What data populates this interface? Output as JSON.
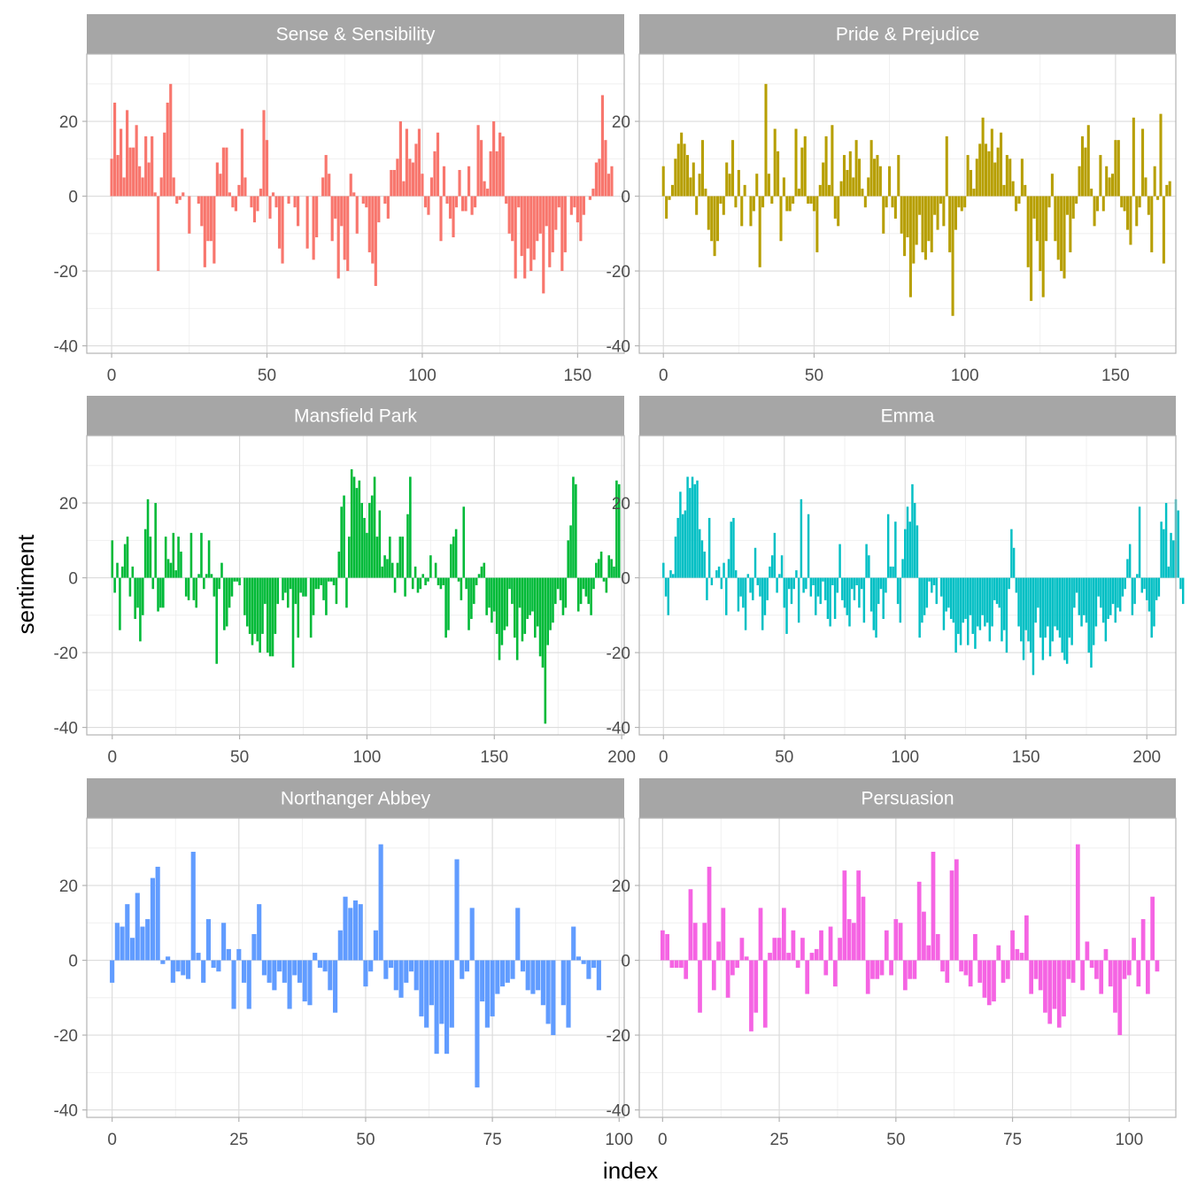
{
  "chart_data": {
    "type": "bar",
    "layout": "facet-grid-2-columns",
    "xlabel": "index",
    "ylabel": "sentiment",
    "ylim": [
      -42,
      38
    ],
    "yticks": [
      -40,
      -20,
      0,
      20
    ],
    "y_minor_ticks": [
      -30,
      -10,
      10,
      30
    ],
    "panels": [
      {
        "title": "Sense & Sensibility",
        "color": "#F8766D",
        "xlim": [
          -8,
          165
        ],
        "xticks": [
          0,
          50,
          100,
          150
        ],
        "x_minor_ticks": [
          25,
          75,
          125
        ],
        "values": [
          10,
          25,
          11,
          18,
          5,
          23,
          13,
          13,
          19,
          8,
          5,
          16,
          9,
          16,
          1,
          -20,
          5,
          17,
          25,
          30,
          5,
          -2,
          -1,
          1,
          0,
          -10,
          0,
          0,
          -2,
          -8,
          -19,
          -12,
          -12,
          -18,
          9,
          6,
          13,
          13,
          1,
          -3,
          -4,
          3,
          18,
          5,
          0,
          -3,
          -7,
          -4,
          2,
          23,
          15,
          -6,
          1,
          -3,
          -14,
          -18,
          0,
          -2,
          0,
          -3,
          -8,
          0,
          0,
          -14,
          0,
          -17,
          -11,
          0,
          5,
          11,
          6,
          -12,
          -6,
          -22,
          -8,
          -17,
          -20,
          6,
          1,
          -10,
          0,
          -2,
          -3,
          -15,
          -18,
          -24,
          -7,
          0,
          -2,
          -6,
          7,
          7,
          10,
          20,
          4,
          18,
          10,
          9,
          14,
          18,
          6,
          -3,
          -5,
          5,
          12,
          17,
          -12,
          8,
          -2,
          -6,
          -11,
          -3,
          7,
          -4,
          -4,
          8,
          -5,
          -3,
          19,
          15,
          4,
          2,
          12,
          20,
          12,
          17,
          16,
          -2,
          -10,
          -12,
          -22,
          -3,
          -16,
          -22,
          -14,
          -20,
          -17,
          -12,
          -10,
          -26,
          -8,
          -19,
          -15,
          -9,
          -3,
          -20,
          -15,
          0,
          -5,
          -3,
          -7,
          -12,
          -5,
          0,
          -1,
          2,
          9,
          10,
          27,
          15,
          6,
          8
        ]
      },
      {
        "title": "Pride & Prejudice",
        "color": "#B79F00",
        "xlim": [
          -8,
          170
        ],
        "xticks": [
          0,
          50,
          100,
          150
        ],
        "x_minor_ticks": [
          25,
          75,
          125
        ],
        "values": [
          8,
          -6,
          -1,
          3,
          10,
          14,
          17,
          14,
          11,
          5,
          9,
          -5,
          6,
          15,
          2,
          -9,
          -12,
          -16,
          -12,
          -2,
          -5,
          9,
          6,
          15,
          -3,
          7,
          -8,
          3,
          0,
          -8,
          -4,
          6,
          -19,
          -3,
          30,
          6,
          -2,
          18,
          12,
          -12,
          5,
          -4,
          -4,
          -2,
          18,
          2,
          13,
          16,
          -2,
          -2,
          -4,
          -15,
          3,
          9,
          16,
          3,
          19,
          -6,
          -8,
          4,
          11,
          7,
          12,
          5,
          15,
          10,
          2,
          -3,
          5,
          15,
          10,
          11,
          8,
          -10,
          -3,
          8,
          -3,
          -6,
          11,
          -10,
          -16,
          -11,
          -27,
          -18,
          -13,
          -5,
          -15,
          -17,
          -12,
          -15,
          -5,
          -9,
          -2,
          -8,
          16,
          -15,
          -32,
          -9,
          -3,
          -4,
          -3,
          11,
          7,
          2,
          10,
          14,
          21,
          14,
          12,
          18,
          9,
          13,
          17,
          3,
          11,
          10,
          4,
          -4,
          -2,
          10,
          3,
          -19,
          -28,
          -6,
          -12,
          -20,
          -27,
          -12,
          -3,
          6,
          -12,
          -17,
          -20,
          -22,
          -5,
          -15,
          -6,
          -2,
          8,
          16,
          13,
          19,
          2,
          -8,
          -4,
          11,
          -4,
          8,
          5,
          6,
          15,
          15,
          -3,
          -4,
          -9,
          -13,
          21,
          -8,
          -3,
          18,
          5,
          -5,
          -15,
          8,
          -1,
          22,
          -18,
          3,
          4
        ]
      },
      {
        "title": "Mansfield Park",
        "color": "#00BA38",
        "xlim": [
          -10,
          201
        ],
        "xticks": [
          0,
          50,
          100,
          150,
          200
        ],
        "x_minor_ticks": [
          25,
          75,
          125,
          175
        ],
        "values": [
          10,
          -4,
          4,
          -14,
          3,
          9,
          11,
          -5,
          3,
          -11,
          -8,
          -17,
          -10,
          13,
          21,
          11,
          -3,
          20,
          -9,
          -8,
          -8,
          11,
          5,
          4,
          12,
          2,
          11,
          7,
          0,
          -5,
          -6,
          12,
          -6,
          -8,
          1,
          12,
          -3,
          1,
          10,
          1,
          -5,
          -23,
          -3,
          4,
          -14,
          -13,
          -8,
          -5,
          -1,
          -1,
          -2,
          0,
          -10,
          -13,
          -15,
          -18,
          -15,
          -17,
          -20,
          -15,
          -7,
          -20,
          -21,
          -21,
          -15,
          -7,
          0,
          -6,
          -4,
          -8,
          -3,
          -24,
          -7,
          -16,
          -4,
          -5,
          -5,
          0,
          -16,
          -10,
          -3,
          -3,
          -2,
          -6,
          -10,
          -1,
          -1,
          -2,
          -7,
          7,
          19,
          22,
          -8,
          11,
          29,
          27,
          24,
          26,
          20,
          16,
          12,
          20,
          22,
          27,
          11,
          18,
          3,
          6,
          5,
          11,
          4,
          -4,
          4,
          11,
          11,
          -5,
          17,
          27,
          -3,
          3,
          -4,
          -3,
          1,
          -2,
          -1,
          6,
          0,
          4,
          -2,
          -3,
          -2,
          -16,
          -14,
          9,
          11,
          13,
          -1,
          -6,
          19,
          -3,
          -14,
          -11,
          -7,
          -2,
          1,
          3,
          4,
          -10,
          -8,
          -12,
          -9,
          -15,
          -22,
          -18,
          -14,
          -13,
          -3,
          -7,
          -16,
          -22,
          -8,
          -17,
          -15,
          -11,
          -10,
          -9,
          -16,
          -13,
          -21,
          -24,
          -39,
          -18,
          -14,
          -12,
          -7,
          -3,
          -6,
          -10,
          -8,
          10,
          14,
          27,
          25,
          -9,
          -7,
          -3,
          -5,
          -7,
          -10,
          -3,
          4,
          5,
          7,
          -1,
          -4,
          6,
          5,
          3,
          26,
          25
        ]
      },
      {
        "title": "Emma",
        "color": "#00BFC4",
        "xlim": [
          -10,
          212
        ],
        "xticks": [
          0,
          50,
          100,
          150,
          200
        ],
        "x_minor_ticks": [
          25,
          75,
          125,
          175
        ],
        "values": [
          4,
          -5,
          -10,
          2,
          1,
          11,
          16,
          23,
          17,
          18,
          27,
          24,
          27,
          25,
          26,
          13,
          10,
          7,
          -6,
          16,
          -2,
          0,
          2,
          3,
          -3,
          4,
          -10,
          5,
          15,
          16,
          2,
          -9,
          -5,
          -8,
          -14,
          1,
          -4,
          -6,
          8,
          -2,
          -5,
          -14,
          -10,
          -6,
          3,
          6,
          12,
          -4,
          1,
          6,
          -8,
          -15,
          -3,
          -7,
          -3,
          2,
          -12,
          21,
          -4,
          -3,
          17,
          -5,
          -2,
          -10,
          -5,
          -7,
          -1,
          -6,
          -11,
          -13,
          -2,
          -11,
          -4,
          9,
          -6,
          -8,
          -10,
          -13,
          -3,
          -6,
          -2,
          -8,
          -3,
          -12,
          9,
          6,
          -9,
          -14,
          -16,
          -7,
          -3,
          -11,
          -4,
          17,
          3,
          3,
          15,
          -7,
          -12,
          5,
          13,
          19,
          15,
          25,
          20,
          14,
          -16,
          -12,
          -10,
          -8,
          -1,
          -4,
          -2,
          -7,
          0,
          -5,
          -14,
          -9,
          -8,
          -11,
          -12,
          -20,
          -15,
          -18,
          -12,
          -11,
          -18,
          -10,
          -15,
          -19,
          -13,
          -14,
          -10,
          -13,
          -12,
          -17,
          -13,
          -6,
          -7,
          -8,
          -17,
          -14,
          -20,
          -3,
          13,
          8,
          -4,
          -13,
          -17,
          -22,
          -14,
          -17,
          -20,
          -26,
          -12,
          -8,
          -16,
          -22,
          -16,
          -13,
          -21,
          -17,
          -13,
          -14,
          -16,
          -20,
          -22,
          -23,
          -16,
          -18,
          -8,
          -4,
          -10,
          -13,
          -10,
          -12,
          -20,
          -24,
          -18,
          -13,
          -5,
          -8,
          -12,
          -17,
          -11,
          -10,
          -7,
          -12,
          -8,
          -9,
          -5,
          -3,
          5,
          9,
          -10,
          -7,
          1,
          19,
          -4,
          -3,
          -6,
          -9,
          -16,
          -13,
          -6,
          -5,
          15,
          13,
          20,
          3,
          12,
          10,
          21,
          18,
          -3,
          -7
        ]
      },
      {
        "title": "Northanger Abbey",
        "color": "#619CFF",
        "xlim": [
          -5,
          101
        ],
        "xticks": [
          0,
          25,
          50,
          75,
          100
        ],
        "x_minor_ticks": [
          12.5,
          37.5,
          62.5,
          87.5
        ],
        "values": [
          -6,
          10,
          9,
          15,
          6,
          18,
          9,
          11,
          22,
          25,
          -1,
          1,
          -6,
          -3,
          -4,
          -5,
          29,
          2,
          -6,
          11,
          -2,
          -3,
          10,
          3,
          -13,
          3,
          -6,
          -13,
          7,
          15,
          -4,
          -6,
          -8,
          -3,
          -6,
          -13,
          -4,
          -6,
          -11,
          -12,
          2,
          -2,
          -3,
          -8,
          -14,
          8,
          17,
          14,
          16,
          15,
          -7,
          -3,
          8,
          31,
          -5,
          -2,
          -8,
          -10,
          -6,
          -3,
          -8,
          -15,
          -18,
          -12,
          -25,
          -17,
          -25,
          -18,
          27,
          -5,
          -3,
          14,
          -34,
          -11,
          -18,
          -15,
          -9,
          -7,
          -6,
          -5,
          14,
          -3,
          -8,
          -9,
          -8,
          -12,
          -17,
          -20,
          0,
          -12,
          -18,
          9,
          1,
          -1,
          -5,
          -2,
          -8
        ]
      },
      {
        "title": "Persuasion",
        "color": "#F564E3",
        "xlim": [
          -5,
          110
        ],
        "xticks": [
          0,
          25,
          50,
          75,
          100
        ],
        "x_minor_ticks": [
          12.5,
          37.5,
          62.5,
          87.5
        ],
        "values": [
          8,
          7,
          -2,
          -2,
          -2,
          -5,
          19,
          10,
          -14,
          10,
          25,
          -8,
          5,
          14,
          -10,
          -4,
          -2,
          6,
          1,
          -19,
          -14,
          14,
          -18,
          2,
          6,
          6,
          14,
          2,
          8,
          -2,
          6,
          -9,
          2,
          3,
          8,
          -4,
          9,
          -7,
          6,
          24,
          11,
          10,
          24,
          17,
          -9,
          -5,
          -5,
          -4,
          8,
          -4,
          11,
          10,
          -8,
          -5,
          -5,
          21,
          13,
          4,
          29,
          7,
          -3,
          -6,
          24,
          27,
          -3,
          -4,
          -7,
          7,
          -6,
          -10,
          -12,
          -11,
          4,
          -6,
          -5,
          8,
          3,
          2,
          12,
          -9,
          -5,
          -8,
          -14,
          -17,
          -13,
          -18,
          -15,
          -5,
          -6,
          31,
          -8,
          5,
          -2,
          -5,
          -9,
          3,
          -7,
          -14,
          -20,
          -5,
          -4,
          6,
          -7,
          11,
          -9,
          17,
          -3
        ]
      }
    ]
  }
}
